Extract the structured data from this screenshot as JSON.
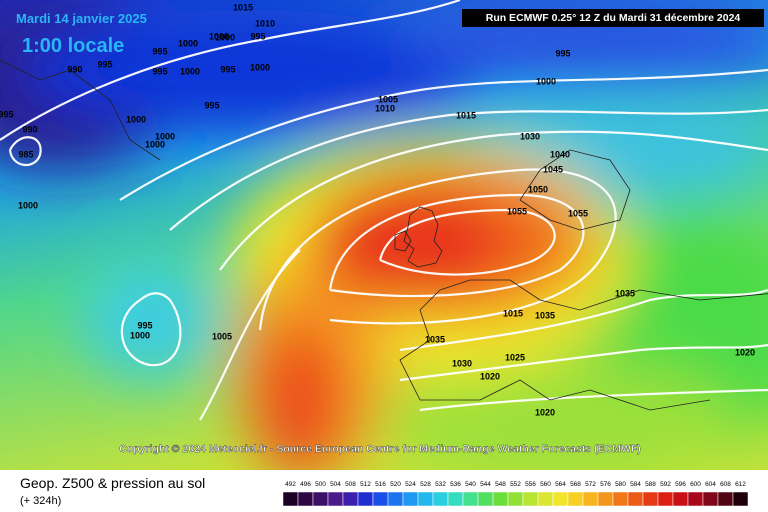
{
  "header": {
    "date": "Mardi 14 janvier 2025",
    "time": "1:00 locale",
    "run": "Run ECMWF 0.25° 12 Z du Mardi 31 décembre 2024"
  },
  "copyright": "Copyright © 2024 Meteociel.fr - Source European Centre for Medium-Range Weather Forecasts (ECMWF)",
  "footer": {
    "title": "Geop. Z500 & pression au sol",
    "lead": "(+ 324h)"
  },
  "isobar_labels": [
    990,
    995,
    995,
    1000,
    1000,
    995,
    1000,
    1000,
    995,
    995,
    1000,
    1000,
    1000,
    995,
    990,
    985,
    1000,
    995,
    1000,
    1005,
    1010,
    1015,
    1030,
    1040,
    1045,
    1050,
    1055,
    1055,
    1035,
    1015,
    1035,
    1035,
    1025,
    1030,
    1020,
    1020,
    1020,
    995,
    1000,
    1005,
    1015,
    1010,
    1000,
    995
  ],
  "legend": {
    "values": [
      492,
      496,
      500,
      504,
      508,
      512,
      516,
      520,
      524,
      528,
      532,
      536,
      540,
      544,
      548,
      552,
      556,
      560,
      564,
      568,
      572,
      576,
      580,
      584,
      588,
      592,
      596,
      600,
      604,
      608,
      612
    ]
  }
}
